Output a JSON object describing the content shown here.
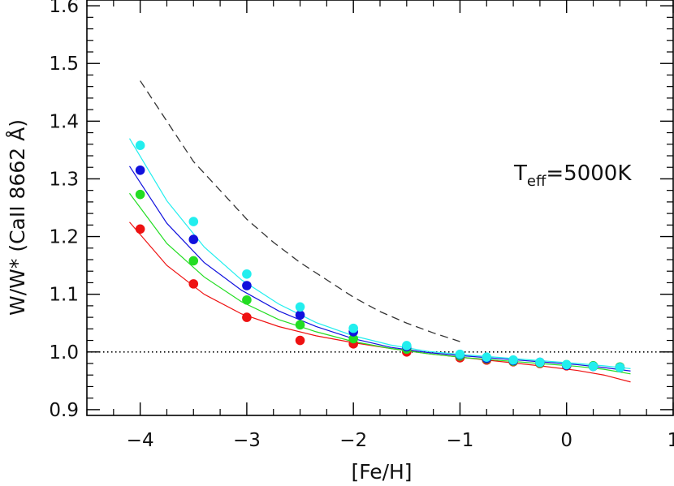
{
  "chart_data": {
    "type": "scatter",
    "xlabel": "[Fe/H]",
    "ylabel": "W/W* (CaII 8662 Å)",
    "xlim": [
      -4.5,
      1.0
    ],
    "ylim": [
      0.89,
      1.61
    ],
    "xticks": [
      -4,
      -3,
      -2,
      -1,
      0,
      1
    ],
    "xtick_labels": [
      "−4",
      "−3",
      "−2",
      "−1",
      "0",
      "1"
    ],
    "yticks": [
      0.9,
      1.0,
      1.1,
      1.2,
      1.3,
      1.4,
      1.5,
      1.6
    ],
    "ytick_labels": [
      "0.9",
      "1.0",
      "1.1",
      "1.2",
      "1.3",
      "1.4",
      "1.5",
      "1.6"
    ],
    "annotation": {
      "base": "T",
      "sub": "eff",
      "rest": "=5000K"
    },
    "grid": false,
    "reference_line": {
      "y": 1.0,
      "style": "dotted",
      "color": "#000000"
    },
    "dashed_curve": {
      "color": "#333333",
      "x": [
        -4.0,
        -3.75,
        -3.5,
        -3.25,
        -3.0,
        -2.75,
        -2.5,
        -2.25,
        -2.0,
        -1.75,
        -1.5,
        -1.25,
        -1.0
      ],
      "y": [
        1.47,
        1.4,
        1.33,
        1.28,
        1.23,
        1.19,
        1.155,
        1.125,
        1.095,
        1.07,
        1.05,
        1.033,
        1.018
      ]
    },
    "series": [
      {
        "color": "#ee1111",
        "x": [
          -4.0,
          -3.5,
          -3.0,
          -2.5,
          -2.0,
          -1.5,
          -1.0,
          -0.75,
          -0.5,
          -0.25,
          0.0,
          0.25,
          0.5
        ],
        "y": [
          1.213,
          1.118,
          1.06,
          1.02,
          1.014,
          1.0,
          0.99,
          0.986,
          0.983,
          0.98,
          0.976,
          0.975,
          0.973
        ],
        "fit_y": [
          1.225,
          1.15,
          1.1,
          1.066,
          1.044,
          1.028,
          1.016,
          1.006,
          0.997,
          0.99,
          0.983,
          0.976,
          0.968,
          0.96,
          0.948
        ]
      },
      {
        "color": "#22dd22",
        "x": [
          -4.0,
          -3.5,
          -3.0,
          -2.5,
          -2.0,
          -1.5,
          -1.0,
          -0.75,
          -0.5,
          -0.25,
          0.0,
          0.25,
          0.5
        ],
        "y": [
          1.273,
          1.158,
          1.09,
          1.047,
          1.023,
          1.005,
          0.993,
          0.988,
          0.984,
          0.981,
          0.978,
          0.976,
          0.974
        ],
        "fit_y": [
          1.275,
          1.188,
          1.13,
          1.087,
          1.056,
          1.035,
          1.018,
          1.006,
          0.997,
          0.99,
          0.985,
          0.98,
          0.975,
          0.97,
          0.962
        ]
      },
      {
        "color": "#1111dd",
        "x": [
          -4.0,
          -3.5,
          -3.0,
          -2.5,
          -2.0,
          -1.5,
          -1.0,
          -0.75,
          -0.5,
          -0.25,
          0.0,
          0.25,
          0.5
        ],
        "y": [
          1.315,
          1.195,
          1.115,
          1.064,
          1.035,
          1.009,
          0.995,
          0.989,
          0.985,
          0.982,
          0.977,
          0.975,
          0.973
        ],
        "fit_y": [
          1.322,
          1.223,
          1.155,
          1.107,
          1.071,
          1.044,
          1.023,
          1.008,
          0.999,
          0.993,
          0.988,
          0.983,
          0.978,
          0.973,
          0.967
        ]
      },
      {
        "color": "#22eeee",
        "x": [
          -4.0,
          -3.5,
          -3.0,
          -2.5,
          -2.0,
          -1.5,
          -1.0,
          -0.75,
          -0.5,
          -0.25,
          0.0,
          0.25,
          0.5
        ],
        "y": [
          1.358,
          1.226,
          1.135,
          1.078,
          1.041,
          1.011,
          0.996,
          0.991,
          0.986,
          0.982,
          0.978,
          0.975,
          0.973
        ],
        "fit_y": [
          1.37,
          1.262,
          1.182,
          1.125,
          1.083,
          1.051,
          1.028,
          1.012,
          1.001,
          0.995,
          0.99,
          0.985,
          0.98,
          0.976,
          0.971
        ]
      }
    ],
    "fit_x": [
      -4.1,
      -3.75,
      -3.4,
      -3.05,
      -2.7,
      -2.35,
      -2.0,
      -1.65,
      -1.3,
      -0.95,
      -0.6,
      -0.25,
      0.1,
      0.35,
      0.6
    ]
  }
}
